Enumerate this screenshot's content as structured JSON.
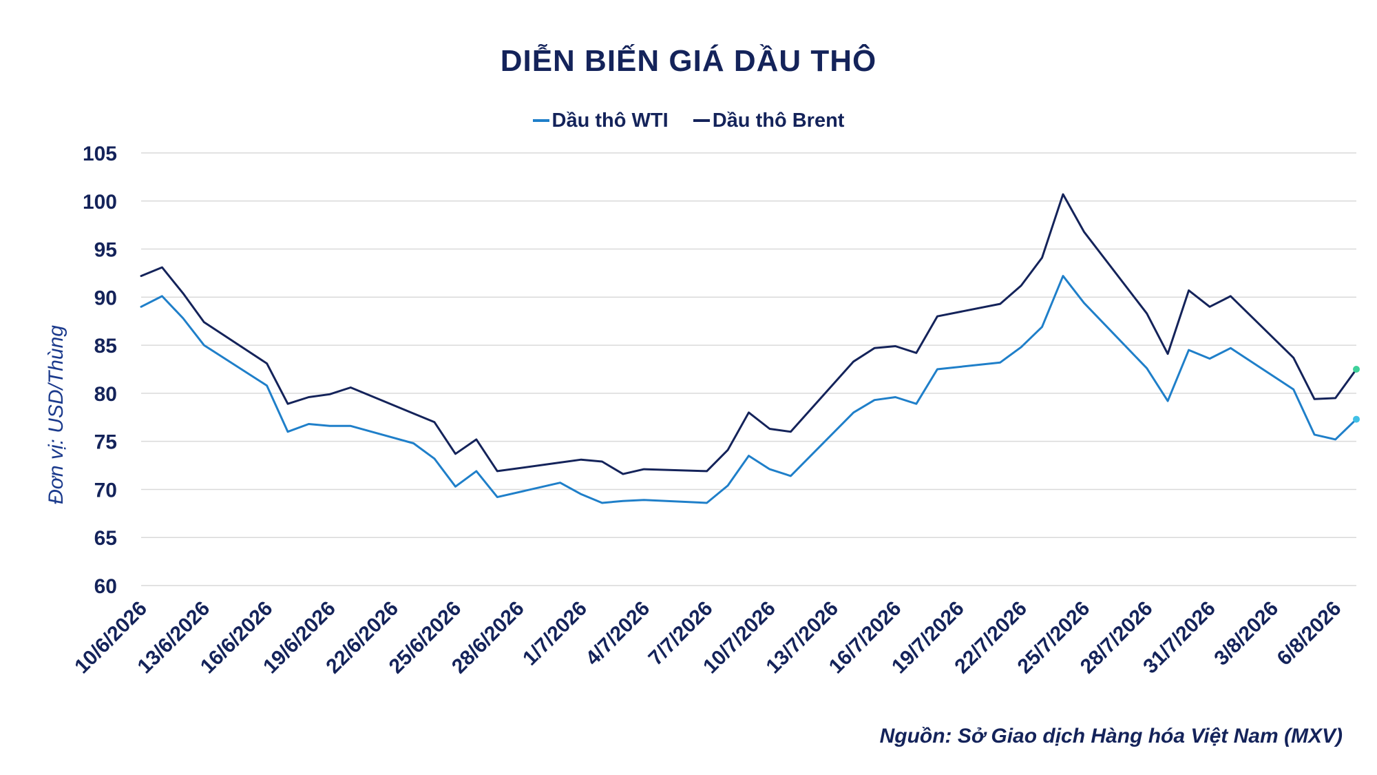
{
  "chart_data": {
    "type": "line",
    "title": "DIỄN BIẾN GIÁ DẦU THÔ",
    "ylabel": "Đơn vị: USD/Thùng",
    "xlabel": "",
    "ylim": [
      60,
      105
    ],
    "yticks": [
      60,
      65,
      70,
      75,
      80,
      85,
      90,
      95,
      100,
      105
    ],
    "grid": true,
    "legend_position": "top-center",
    "source": "Nguồn: Sở Giao dịch Hàng hóa Việt Nam (MXV)",
    "x_tick_labels": [
      "10/6/2026",
      "13/6/2026",
      "16/6/2026",
      "19/6/2026",
      "22/6/2026",
      "25/6/2026",
      "28/6/2026",
      "1/7/2026",
      "4/7/2026",
      "7/7/2026",
      "10/7/2026",
      "13/7/2026",
      "16/7/2026",
      "19/7/2026",
      "22/7/2026",
      "25/7/2026",
      "28/7/2026",
      "31/7/2026",
      "3/8/2026",
      "6/8/2026"
    ],
    "x": [
      "10/6/2026",
      "11/6/2026",
      "12/6/2026",
      "13/6/2026",
      "16/6/2026",
      "17/6/2026",
      "18/6/2026",
      "19/6/2026",
      "20/6/2026",
      "23/6/2026",
      "24/6/2026",
      "25/6/2026",
      "26/6/2026",
      "27/6/2026",
      "30/6/2026",
      "1/7/2026",
      "2/7/2026",
      "3/7/2026",
      "4/7/2026",
      "7/7/2026",
      "8/7/2026",
      "9/7/2026",
      "10/7/2026",
      "11/7/2026",
      "14/7/2026",
      "15/7/2026",
      "16/7/2026",
      "17/7/2026",
      "18/7/2026",
      "21/7/2026",
      "22/7/2026",
      "23/7/2026",
      "24/7/2026",
      "25/7/2026",
      "28/7/2026",
      "29/7/2026",
      "30/7/2026",
      "31/7/2026",
      "1/8/2026",
      "4/8/2026",
      "5/8/2026",
      "6/8/2026",
      "7/8/2026"
    ],
    "series": [
      {
        "name": "Dầu thô WTI",
        "color": "#1f7fc9",
        "values": [
          89.0,
          90.1,
          87.8,
          85.0,
          80.8,
          76.0,
          76.8,
          76.6,
          76.6,
          74.8,
          73.2,
          70.3,
          71.9,
          69.2,
          70.7,
          69.5,
          68.6,
          68.8,
          68.9,
          68.6,
          70.4,
          73.5,
          72.1,
          71.4,
          78.0,
          79.3,
          79.6,
          78.9,
          82.5,
          83.2,
          84.8,
          86.9,
          92.2,
          89.4,
          82.6,
          79.2,
          84.5,
          83.6,
          84.7,
          80.4,
          75.7,
          75.2,
          77.3
        ]
      },
      {
        "name": "Dầu thô Brent",
        "color": "#14235a",
        "values": [
          92.2,
          93.1,
          90.4,
          87.4,
          83.1,
          78.9,
          79.6,
          79.9,
          80.6,
          77.9,
          77.0,
          73.7,
          75.2,
          71.9,
          72.8,
          73.1,
          72.9,
          71.6,
          72.1,
          71.9,
          74.1,
          78.0,
          76.3,
          76.0,
          83.3,
          84.7,
          84.9,
          84.2,
          88.0,
          89.3,
          91.2,
          94.1,
          100.7,
          96.8,
          88.3,
          84.1,
          90.7,
          89.0,
          90.1,
          83.7,
          79.4,
          79.5,
          82.5
        ]
      }
    ]
  }
}
